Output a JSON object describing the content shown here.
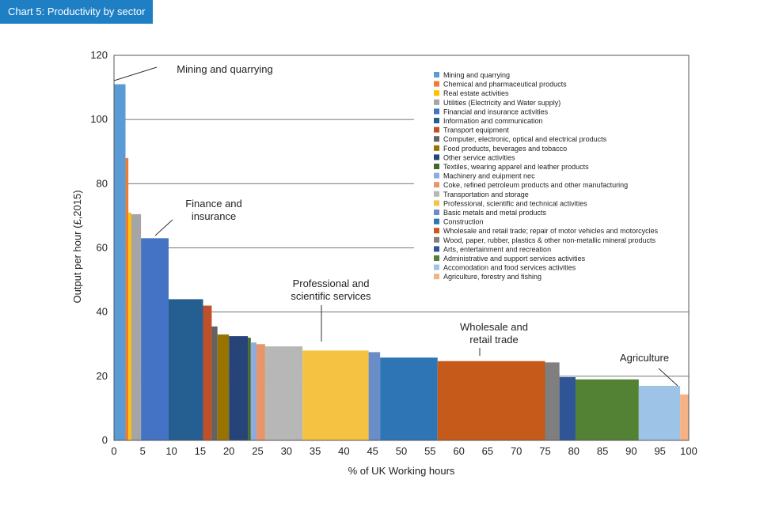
{
  "header": {
    "title": "Chart 5: Productivity by sector"
  },
  "chart_data": {
    "type": "bar",
    "title": "Chart 5: Productivity by sector",
    "xlabel": "% of UK Working hours",
    "ylabel": "Output per hour (£,2015)",
    "xlim": [
      0,
      100
    ],
    "ylim": [
      0,
      120
    ],
    "x_ticks": [
      "0",
      "5",
      "10",
      "15",
      "20",
      "25",
      "30",
      "35",
      "40",
      "45",
      "50",
      "55",
      "60",
      "65",
      "70",
      "75",
      "80",
      "85",
      "90",
      "95",
      "100"
    ],
    "y_ticks": [
      "0",
      "20",
      "40",
      "60",
      "80",
      "100",
      "120"
    ],
    "grid": "horizontal",
    "legend_position": "top-right",
    "series": [
      {
        "name": "Mining and quarrying",
        "x_start": 0,
        "x_end": 2,
        "value": 111,
        "color": "#5b9bd5"
      },
      {
        "name": "Chemical and pharmaceutical products",
        "x_start": 2,
        "x_end": 2.5,
        "value": 88,
        "color": "#ed7d31"
      },
      {
        "name": "Real estate activities",
        "x_start": 2.5,
        "x_end": 3,
        "value": 71,
        "color": "#ffc000"
      },
      {
        "name": "Utilities (Electricity and Water supply)",
        "x_start": 3,
        "x_end": 4.7,
        "value": 70.5,
        "color": "#a5a5a5"
      },
      {
        "name": "Financial and insurance activities",
        "x_start": 4.7,
        "x_end": 9.5,
        "value": 63,
        "color": "#4472c4"
      },
      {
        "name": "Information and communication",
        "x_start": 9.5,
        "x_end": 15.5,
        "value": 44,
        "color": "#255e91"
      },
      {
        "name": "Transport equipment",
        "x_start": 15.5,
        "x_end": 17,
        "value": 42,
        "color": "#c0502a"
      },
      {
        "name": "Computer, electronic, optical and electrical products",
        "x_start": 17,
        "x_end": 18,
        "value": 35.5,
        "color": "#636363"
      },
      {
        "name": "Food products, beverages and tobacco",
        "x_start": 18,
        "x_end": 20,
        "value": 33,
        "color": "#997300"
      },
      {
        "name": "Other service activities",
        "x_start": 20,
        "x_end": 23.3,
        "value": 32.5,
        "color": "#264478"
      },
      {
        "name": "Textiles, wearing apparel and leather products",
        "x_start": 23.3,
        "x_end": 23.8,
        "value": 32,
        "color": "#43682b"
      },
      {
        "name": "Machinery and euipment nec",
        "x_start": 23.8,
        "x_end": 24.8,
        "value": 30.5,
        "color": "#8faadc"
      },
      {
        "name": "Coke, refined petroleum products and other manufacturing",
        "x_start": 24.8,
        "x_end": 26.3,
        "value": 30,
        "color": "#e8956b"
      },
      {
        "name": "Transportation and storage",
        "x_start": 26.3,
        "x_end": 32.8,
        "value": 29.3,
        "color": "#b7b7b7"
      },
      {
        "name": "Professional, scientific and technical activities",
        "x_start": 32.8,
        "x_end": 44.3,
        "value": 28,
        "color": "#f5c242"
      },
      {
        "name": "Basic metals and metal products",
        "x_start": 44.3,
        "x_end": 46.3,
        "value": 27.5,
        "color": "#6a8cc7"
      },
      {
        "name": "Construction",
        "x_start": 46.3,
        "x_end": 56.3,
        "value": 25.8,
        "color": "#2e75b6"
      },
      {
        "name": "Wholesale and retail trade; repair of motor vehicles and motorcycles",
        "x_start": 56.3,
        "x_end": 75,
        "value": 24.7,
        "color": "#c55a1a"
      },
      {
        "name": "Wood, paper, rubber, plastics & other non-metallic mineral products",
        "x_start": 75,
        "x_end": 77.5,
        "value": 24.3,
        "color": "#7f7f7f"
      },
      {
        "name": "Arts, entertainment and recreation",
        "x_start": 77.5,
        "x_end": 80.3,
        "value": 19.7,
        "color": "#2f5597"
      },
      {
        "name": "Administrative and support services activities",
        "x_start": 80.3,
        "x_end": 91.3,
        "value": 19,
        "color": "#548235"
      },
      {
        "name": "Accomodation and food services activities",
        "x_start": 91.3,
        "x_end": 98.5,
        "value": 17,
        "color": "#9dc3e6"
      },
      {
        "name": "Agriculture, forestry and fishing",
        "x_start": 98.5,
        "x_end": 100,
        "value": 14.3,
        "color": "#f4b183"
      }
    ],
    "annotations": [
      {
        "lines": [
          "Mining and quarrying"
        ],
        "x": 0,
        "y": 112
      },
      {
        "lines": [
          "Finance and",
          "insurance"
        ],
        "x": 7,
        "y": 66
      },
      {
        "lines": [
          "Professional and",
          "scientific services"
        ],
        "x": 36,
        "y": 30
      },
      {
        "lines": [
          "Wholesale and",
          "retail trade"
        ],
        "x": 63,
        "y": 26
      },
      {
        "lines": [
          "Agriculture"
        ],
        "x": 95,
        "y": 18
      }
    ]
  }
}
